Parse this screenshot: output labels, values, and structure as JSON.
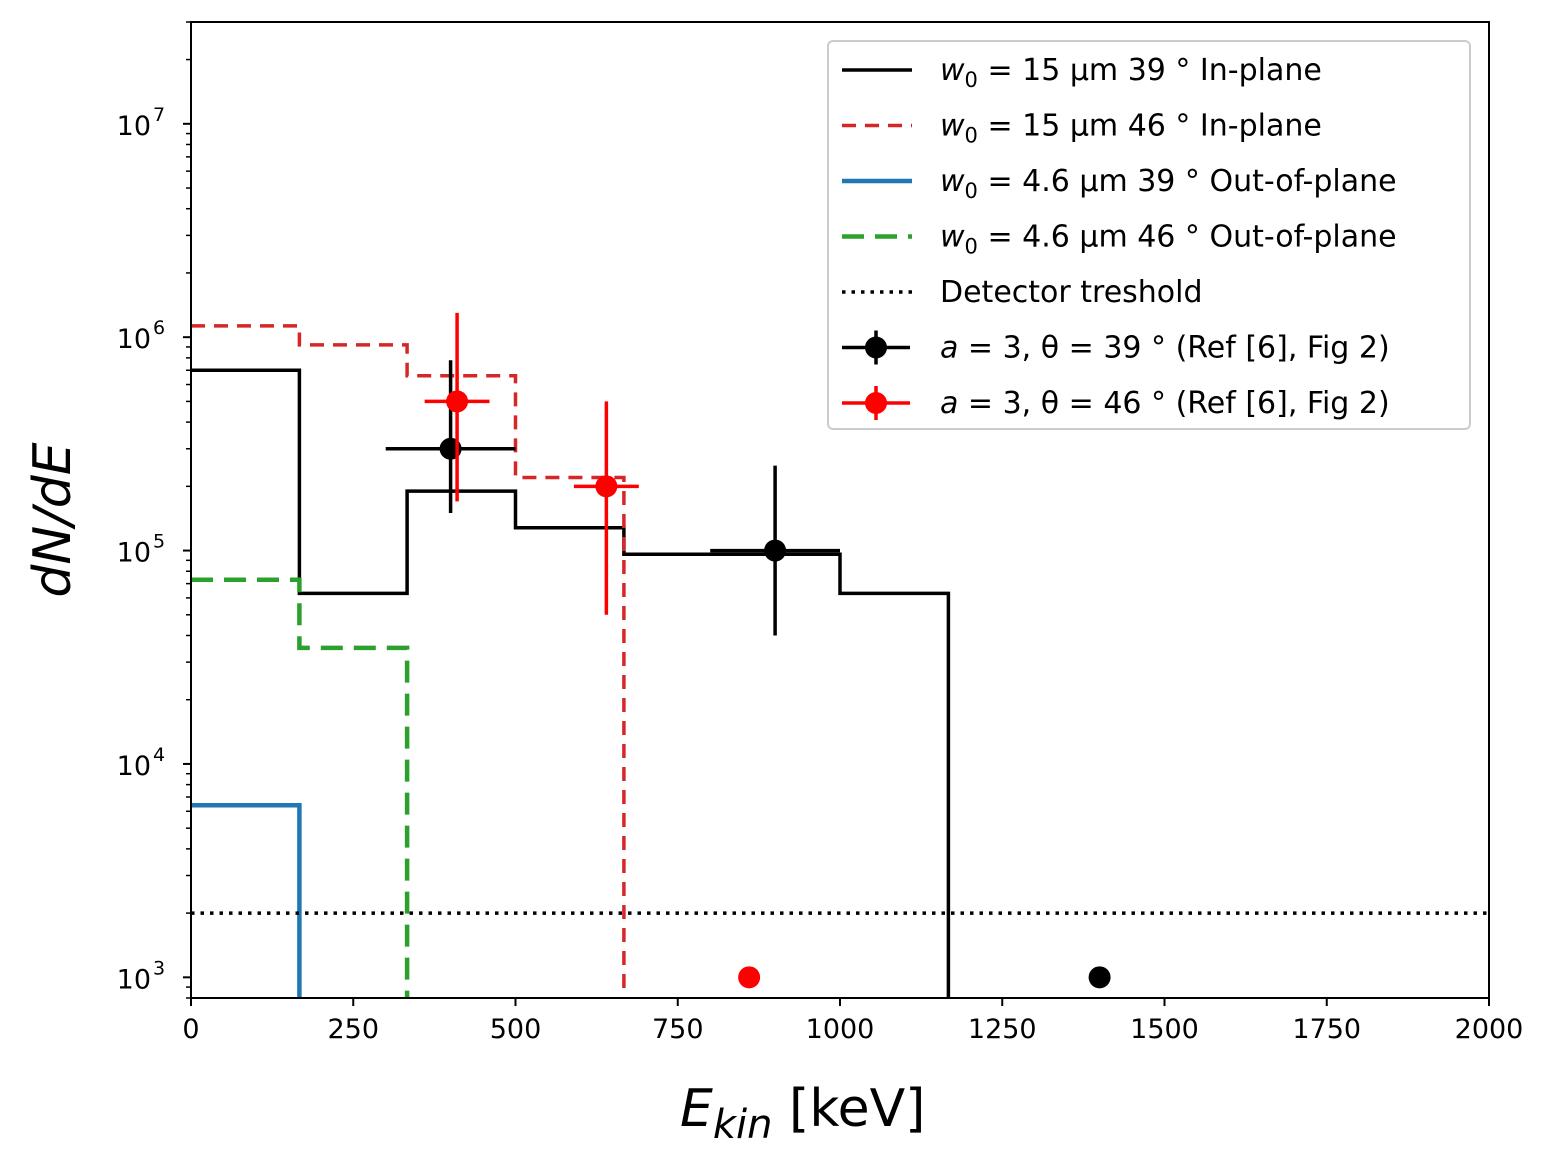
{
  "chart_data": {
    "type": "line",
    "xlabel": "E",
    "xlabel_sub": "kin",
    "xlabel_unit": "[keV]",
    "ylabel": "dN/dE",
    "xlim": [
      0,
      2000
    ],
    "ylim": [
      800,
      30000000
    ],
    "yscale": "log",
    "x_ticks": [
      0,
      250,
      500,
      750,
      1000,
      1250,
      1500,
      1750,
      2000
    ],
    "x_tick_labels": [
      "0",
      "250",
      "500",
      "750",
      "1000",
      "1250",
      "1500",
      "1750",
      "2000"
    ],
    "y_ticks": [
      {
        "value": 1000,
        "base": "10",
        "exp": "3"
      },
      {
        "value": 10000,
        "base": "10",
        "exp": "4"
      },
      {
        "value": 100000,
        "base": "10",
        "exp": "5"
      },
      {
        "value": 1000000,
        "base": "10",
        "exp": "6"
      },
      {
        "value": 10000000,
        "base": "10",
        "exp": "7"
      }
    ],
    "series": [
      {
        "name": "w0 = 15 μm 39° In-plane",
        "kind": "step",
        "color": "#000000",
        "dash": "solid",
        "width": 3.5,
        "edges": [
          0,
          167,
          333,
          500,
          667,
          1000,
          1167
        ],
        "values": [
          700000,
          63000,
          190000,
          128000,
          96000,
          63000
        ],
        "legend": {
          "math": "w",
          "sub": "0",
          "rest": " = 15 μm 39 ° ",
          "suffix": "In-plane"
        }
      },
      {
        "name": "w0 = 15 μm 46° In-plane",
        "kind": "step",
        "color": "#d62728",
        "dash": "dashed",
        "width": 3.5,
        "edges": [
          0,
          167,
          333,
          500,
          667
        ],
        "values": [
          1130000,
          920000,
          660000,
          220000
        ],
        "legend": {
          "math": "w",
          "sub": "0",
          "rest": " = 15 μm 46 ° ",
          "suffix": "In-plane"
        }
      },
      {
        "name": "w0 = 4.6 μm 39° Out-of-plane",
        "kind": "step",
        "color": "#1f77b4",
        "dash": "solid",
        "width": 4.5,
        "edges": [
          0,
          167
        ],
        "values": [
          6400
        ],
        "legend": {
          "math": "w",
          "sub": "0",
          "rest": " = 4.6 μm 39 ° ",
          "suffix": "Out-of-plane"
        }
      },
      {
        "name": "w0 = 4.6 μm 46° Out-of-plane",
        "kind": "step",
        "color": "#2ca02c",
        "dash": "dashed-long",
        "width": 4.5,
        "edges": [
          0,
          167,
          333
        ],
        "values": [
          73000,
          35000
        ],
        "legend": {
          "math": "w",
          "sub": "0",
          "rest": " = 4.6 μm 46 ° ",
          "suffix": "Out-of-plane"
        }
      },
      {
        "name": "Detector treshold",
        "kind": "hline",
        "color": "#000000",
        "dash": "dotted",
        "width": 3.5,
        "y": 2000,
        "legend": {
          "plain": "Detector treshold"
        }
      },
      {
        "name": "a = 3, θ = 39° (Ref [6], Fig 2)",
        "kind": "errorbar",
        "color": "#000000",
        "points": [
          {
            "x": 400,
            "y": 300000,
            "xerr": 100,
            "ylo": 150000,
            "yhi": 780000
          },
          {
            "x": 900,
            "y": 100000,
            "xerr": 100,
            "ylo": 40000,
            "yhi": 250000
          },
          {
            "x": 1400,
            "y": 1000,
            "xerr": 0,
            "ylo": 1000,
            "yhi": 1000
          }
        ],
        "legend": {
          "math": "a",
          "rest": " = 3, θ = 39 ° ",
          "suffix": "(Ref [6], Fig 2)"
        }
      },
      {
        "name": "a = 3, θ = 46° (Ref [6], Fig 2)",
        "kind": "errorbar",
        "color": "#ff0000",
        "points": [
          {
            "x": 410,
            "y": 500000,
            "xerr": 50,
            "ylo": 170000,
            "yhi": 1300000
          },
          {
            "x": 640,
            "y": 200000,
            "xerr": 50,
            "ylo": 50000,
            "yhi": 500000
          },
          {
            "x": 860,
            "y": 1000,
            "xerr": 0,
            "ylo": 1000,
            "yhi": 1000
          }
        ],
        "legend": {
          "math": "a",
          "rest": " = 3, θ = 46 ° ",
          "suffix": "(Ref [6], Fig 2)"
        }
      }
    ],
    "legend_position": "top-right"
  }
}
